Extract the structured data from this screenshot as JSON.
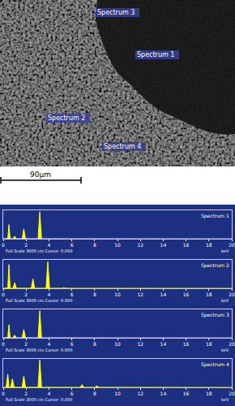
{
  "image": {
    "labels": [
      {
        "text": "Spectrum 3"
      },
      {
        "text": "Spectrum 1"
      },
      {
        "text": "Spectrum 2"
      },
      {
        "text": "Spectrum 4"
      }
    ],
    "scale_bar": "90µm"
  },
  "chart_data": [
    {
      "type": "area",
      "title": "Spectrum 1",
      "x_label": "keV",
      "annotations": [
        "Full Scale 3000 cts Cursor: 0.000"
      ],
      "x": [
        0,
        0.15,
        0.3,
        0.4,
        0.5,
        0.6,
        0.85,
        1.0,
        1.15,
        1.65,
        1.8,
        1.95,
        3.05,
        3.2,
        3.35,
        6,
        10,
        20
      ],
      "values": [
        0,
        40,
        60,
        30,
        1500,
        30,
        30,
        280,
        30,
        30,
        1050,
        30,
        25,
        2850,
        25,
        20,
        15,
        10
      ],
      "color": "#ffff00",
      "xlim": [
        0,
        20
      ],
      "xticks": [
        0,
        2,
        4,
        6,
        8,
        10,
        12,
        14,
        16,
        18,
        20
      ],
      "ylim": [
        0,
        3000
      ],
      "tick_labels": "x"
    },
    {
      "type": "area",
      "title": "Spectrum 2",
      "x_label": "keV",
      "annotations": [
        "Full Scale 3000 cts Cursor: 0.000"
      ],
      "x": [
        0,
        0.15,
        0.3,
        0.4,
        0.5,
        0.6,
        0.85,
        1.0,
        1.15,
        2.45,
        2.6,
        2.75,
        3.75,
        3.9,
        4.05,
        5.2,
        5.3,
        5.4,
        10,
        20
      ],
      "values": [
        0,
        40,
        60,
        30,
        2500,
        30,
        30,
        600,
        30,
        30,
        1000,
        30,
        25,
        2800,
        25,
        20,
        100,
        20,
        15,
        10
      ],
      "color": "#ffff00",
      "xlim": [
        0,
        20
      ],
      "xticks": [
        0,
        2,
        4,
        6,
        8,
        10,
        12,
        14,
        16,
        18,
        20
      ],
      "ylim": [
        0,
        3000
      ],
      "tick_labels": "x"
    },
    {
      "type": "area",
      "title": "Spectrum 3",
      "x_label": "keV",
      "annotations": [
        "Full Scale 3000 cts Cursor: 0.000"
      ],
      "x": [
        0,
        0.15,
        0.3,
        0.4,
        0.5,
        0.6,
        0.85,
        1.0,
        1.15,
        1.65,
        1.8,
        1.95,
        3.05,
        3.2,
        3.35,
        6,
        10,
        20
      ],
      "values": [
        0,
        40,
        60,
        30,
        1400,
        30,
        30,
        300,
        30,
        30,
        900,
        30,
        25,
        2850,
        25,
        20,
        15,
        10
      ],
      "color": "#ffff00",
      "xlim": [
        0,
        20
      ],
      "xticks": [
        0,
        2,
        4,
        6,
        8,
        10,
        12,
        14,
        16,
        18,
        20
      ],
      "ylim": [
        0,
        3000
      ],
      "tick_labels": "x"
    },
    {
      "type": "area",
      "title": "Spectrum 4",
      "x_label": "keV",
      "annotations": [
        "Full Scale 3000 cts Cursor: 0.000"
      ],
      "x": [
        0,
        0.15,
        0.25,
        0.4,
        0.5,
        0.65,
        0.8,
        0.95,
        1.65,
        1.8,
        1.95,
        3.05,
        3.2,
        3.35,
        6.75,
        6.9,
        7.05,
        8.05,
        8.2,
        8.35,
        12,
        20
      ],
      "values": [
        0,
        40,
        30,
        1400,
        30,
        30,
        900,
        30,
        30,
        1200,
        30,
        25,
        2900,
        25,
        20,
        300,
        20,
        20,
        200,
        20,
        15,
        10
      ],
      "color": "#ffff00",
      "xlim": [
        0,
        20
      ],
      "xticks": [
        0,
        2,
        4,
        6,
        8,
        10,
        12,
        14,
        16,
        18,
        20
      ],
      "ylim": [
        0,
        3000
      ],
      "tick_labels": "x"
    }
  ]
}
